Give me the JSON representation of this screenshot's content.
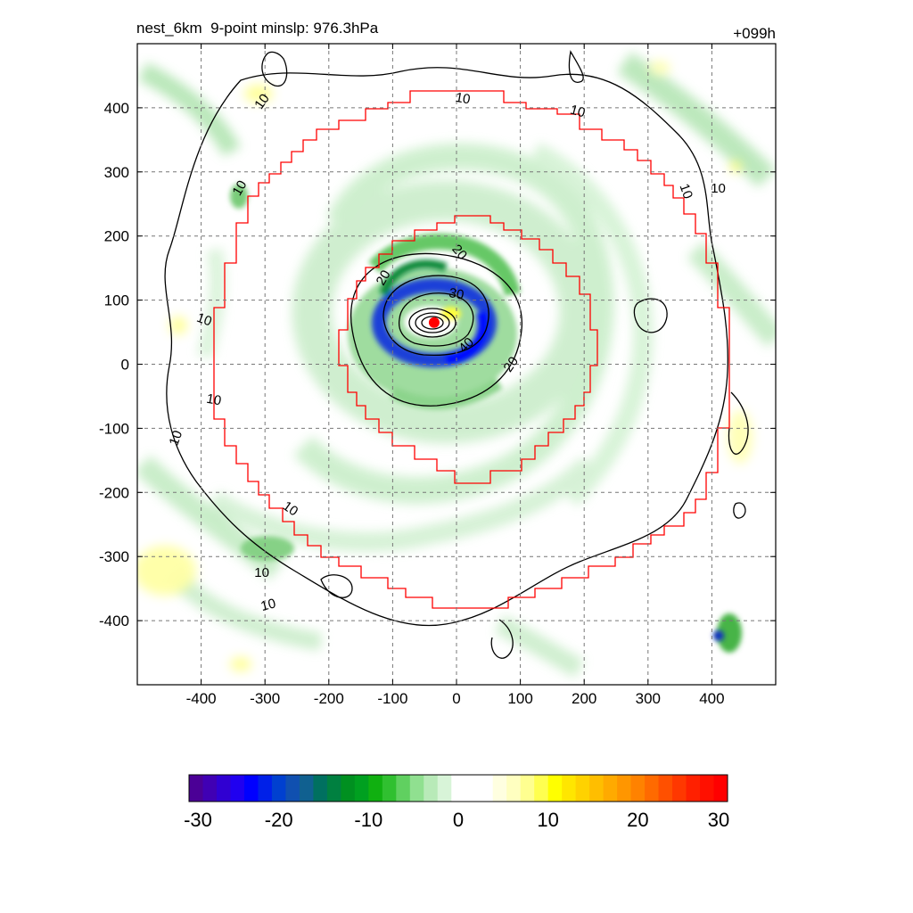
{
  "header": {
    "title_left": "nest_6km  9-point minslp: 976.3hPa",
    "title_right": "+099h"
  },
  "chart_data": {
    "type": "heatmap",
    "title": "nest_6km  9-point minslp: 976.3hPa",
    "forecast_hour": "+099h",
    "xlim": [
      -500,
      500
    ],
    "ylim": [
      -500,
      500
    ],
    "x_ticks": [
      -400,
      -300,
      -200,
      -100,
      0,
      100,
      200,
      300,
      400
    ],
    "y_ticks": [
      400,
      300,
      200,
      100,
      0,
      -100,
      -200,
      -300,
      -400
    ],
    "x_tick_labels": [
      "-400",
      "-300",
      "-200",
      "-100",
      "0",
      "100",
      "200",
      "300",
      "400"
    ],
    "y_tick_labels": [
      "400",
      "300",
      "200",
      "100",
      "0",
      "-100",
      "-200",
      "-300",
      "-400"
    ],
    "grid": true,
    "center_marker": {
      "x": -35,
      "y": 65,
      "color": "#ff0000"
    },
    "contour_levels": [
      10,
      20,
      30,
      40
    ],
    "contour_labels": [
      "10",
      "10",
      "10",
      "10",
      "10",
      "10",
      "10",
      "10",
      "10",
      "10",
      "10",
      "10",
      "20",
      "20",
      "20",
      "30",
      "40"
    ],
    "colorbar": {
      "min": -30,
      "max": 30,
      "tick_values": [
        -30,
        -20,
        -10,
        0,
        10,
        20,
        30
      ],
      "tick_labels": [
        "-30",
        "-20",
        "-10",
        "0",
        "10",
        "20",
        "30"
      ],
      "colors": [
        "#4b0096",
        "#4000b4",
        "#3000d2",
        "#2000f0",
        "#0000ff",
        "#0020e8",
        "#0040d0",
        "#1050b0",
        "#106090",
        "#007060",
        "#008040",
        "#009020",
        "#00a020",
        "#10b010",
        "#30c030",
        "#60d060",
        "#90e090",
        "#b8eab8",
        "#d8f4d8",
        "#ffffff",
        "#ffffff",
        "#ffffff",
        "#ffffe0",
        "#ffffc0",
        "#ffff90",
        "#ffff50",
        "#ffff00",
        "#ffe600",
        "#ffd200",
        "#ffbe00",
        "#ffaa00",
        "#ff9600",
        "#ff8200",
        "#ff6a00",
        "#ff5000",
        "#ff3800",
        "#ff2000",
        "#ff1000",
        "#ff0000"
      ]
    }
  }
}
